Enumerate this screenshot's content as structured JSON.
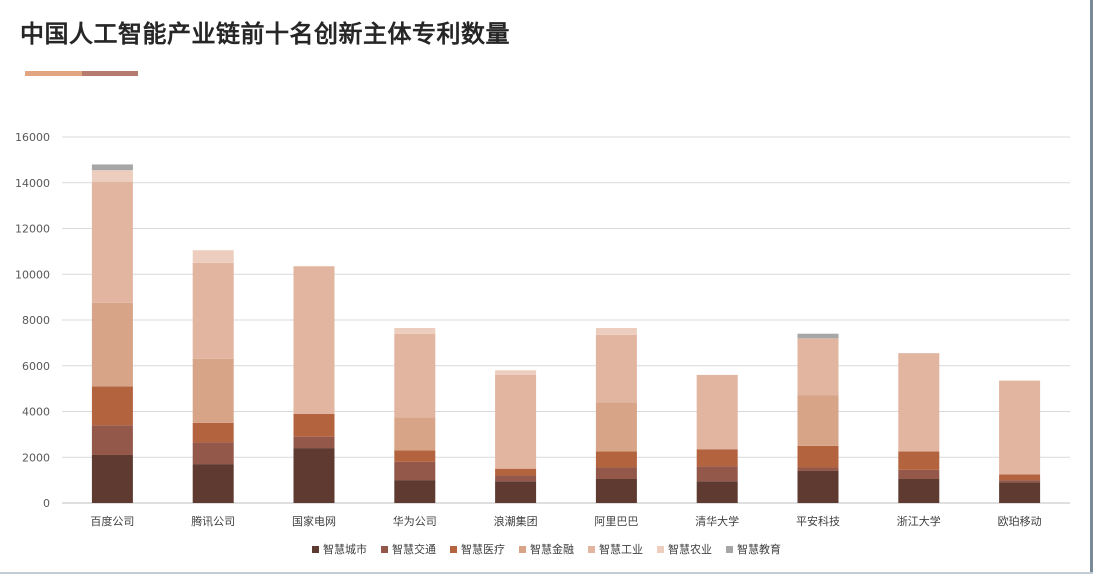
{
  "title": "中国人工智能产业链前十名创新主体专利数量",
  "accent_colors": [
    "#e2a582",
    "#b57b6e"
  ],
  "chart_data": {
    "type": "bar",
    "stacked": true,
    "categories": [
      "百度公司",
      "腾讯公司",
      "国家电网",
      "华为公司",
      "浪潮集团",
      "阿里巴巴",
      "清华大学",
      "平安科技",
      "浙江大学",
      "欧珀移动"
    ],
    "series": [
      {
        "name": "智慧城市",
        "color": "#5e3a30",
        "values": [
          2100,
          1700,
          2400,
          1000,
          950,
          1050,
          950,
          1400,
          1050,
          900
        ]
      },
      {
        "name": "智慧交通",
        "color": "#935849",
        "values": [
          1300,
          950,
          500,
          800,
          250,
          500,
          650,
          150,
          400,
          100
        ]
      },
      {
        "name": "智慧医疗",
        "color": "#b4633f",
        "values": [
          1700,
          850,
          1000,
          500,
          300,
          700,
          750,
          950,
          800,
          250
        ]
      },
      {
        "name": "智慧金融",
        "color": "#d8a487",
        "values": [
          3650,
          2800,
          0,
          1450,
          0,
          2150,
          0,
          2200,
          0,
          0
        ]
      },
      {
        "name": "智慧工业",
        "color": "#e1b5a0",
        "values": [
          5300,
          4200,
          6450,
          3650,
          4100,
          2950,
          3250,
          2500,
          4300,
          4100
        ]
      },
      {
        "name": "智慧农业",
        "color": "#edcdbe",
        "values": [
          500,
          550,
          0,
          250,
          200,
          300,
          0,
          0,
          0,
          0
        ]
      },
      {
        "name": "智慧教育",
        "color": "#a6a6a6",
        "values": [
          250,
          0,
          0,
          0,
          0,
          0,
          0,
          200,
          0,
          0
        ]
      }
    ],
    "ylim": [
      0,
      16000
    ],
    "yticks": [
      0,
      2000,
      4000,
      6000,
      8000,
      10000,
      12000,
      14000,
      16000
    ],
    "grid": true,
    "legend_position": "bottom"
  }
}
